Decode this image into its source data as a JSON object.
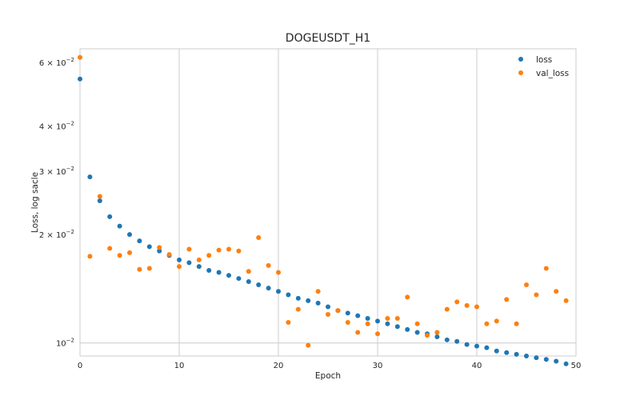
{
  "chart_data": {
    "type": "scatter",
    "title": "DOGEUSDT_H1",
    "xlabel": "Epoch",
    "ylabel": "Loss, log sacle",
    "xlim": [
      0,
      50
    ],
    "ylim": [
      0.0092,
      0.0655
    ],
    "yscale": "log",
    "grid": "vertical",
    "legend_position": "top-right",
    "x_ticks": [
      0,
      10,
      20,
      30,
      40,
      50
    ],
    "x_tick_labels": [
      "0",
      "10",
      "20",
      "30",
      "40",
      "50"
    ],
    "y_ticks": [
      0.01,
      0.02,
      0.03,
      0.04,
      0.06
    ],
    "y_tick_labels": [
      {
        "mantissa": "",
        "power": "10",
        "exp": "−2"
      },
      {
        "mantissa": "2 × ",
        "power": "10",
        "exp": "−2"
      },
      {
        "mantissa": "3 × ",
        "power": "10",
        "exp": "−2"
      },
      {
        "mantissa": "4 × ",
        "power": "10",
        "exp": "−2"
      },
      {
        "mantissa": "6 × ",
        "power": "10",
        "exp": "−2"
      }
    ],
    "x": [
      0,
      1,
      2,
      3,
      4,
      5,
      6,
      7,
      8,
      9,
      10,
      11,
      12,
      13,
      14,
      15,
      16,
      17,
      18,
      19,
      20,
      21,
      22,
      23,
      24,
      25,
      26,
      27,
      28,
      29,
      30,
      31,
      32,
      33,
      34,
      35,
      36,
      37,
      38,
      39,
      40,
      41,
      42,
      43,
      44,
      45,
      46,
      47,
      48,
      49
    ],
    "series": [
      {
        "name": "loss",
        "color": "#1f77b4",
        "values": [
          0.054,
          0.0289,
          0.0248,
          0.0224,
          0.0211,
          0.02,
          0.0192,
          0.0185,
          0.018,
          0.0175,
          0.017,
          0.0167,
          0.0163,
          0.0159,
          0.0157,
          0.0154,
          0.0151,
          0.0148,
          0.0145,
          0.0142,
          0.0139,
          0.0136,
          0.0133,
          0.0131,
          0.0129,
          0.0126,
          0.0123,
          0.0121,
          0.0119,
          0.0117,
          0.0115,
          0.0113,
          0.0111,
          0.0109,
          0.0107,
          0.0106,
          0.0104,
          0.0102,
          0.0101,
          0.0099,
          0.0098,
          0.0097,
          0.0095,
          0.0094,
          0.0093,
          0.0092,
          0.0091,
          0.009,
          0.0089,
          0.00875
        ]
      },
      {
        "name": "val_loss",
        "color": "#ff7f0e",
        "values": [
          0.062,
          0.0174,
          0.0255,
          0.0183,
          0.0175,
          0.0178,
          0.016,
          0.0161,
          0.0184,
          0.0176,
          0.0163,
          0.0182,
          0.017,
          0.0175,
          0.0181,
          0.0182,
          0.018,
          0.0158,
          0.0196,
          0.0164,
          0.0157,
          0.0114,
          0.0124,
          0.00985,
          0.0139,
          0.012,
          0.0123,
          0.0114,
          0.0107,
          0.0113,
          0.0106,
          0.0117,
          0.0117,
          0.0134,
          0.0113,
          0.0105,
          0.0107,
          0.0124,
          0.013,
          0.0127,
          0.0126,
          0.0113,
          0.0115,
          0.0132,
          0.0113,
          0.0145,
          0.0136,
          0.0161,
          0.0139,
          0.0131
        ]
      }
    ]
  }
}
